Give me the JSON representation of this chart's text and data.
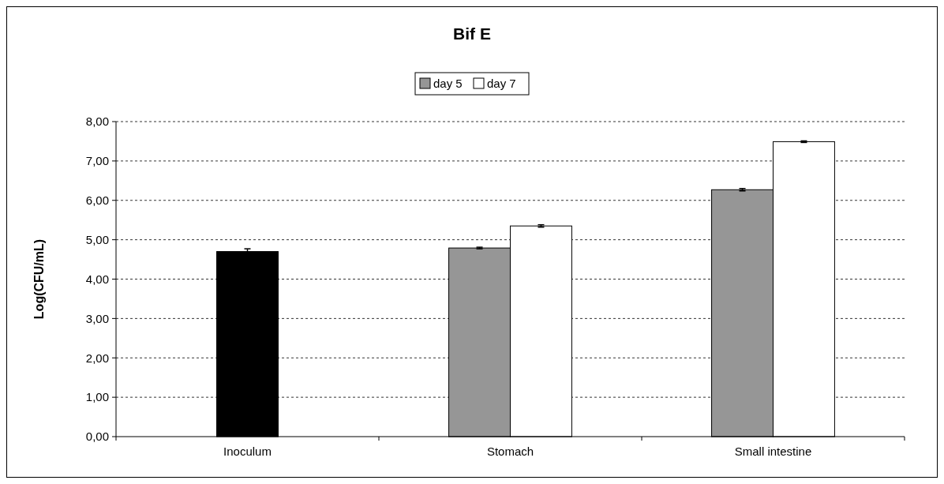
{
  "chart_data": {
    "type": "bar",
    "title": "Bif E",
    "ylabel": "Log(CFU/mL)",
    "categories": [
      "Inoculum",
      "Stomach",
      "Small intestine"
    ],
    "series": [
      {
        "color": "#000000",
        "values": [
          4.7,
          null,
          null
        ],
        "errors": [
          0.07,
          null,
          null
        ]
      },
      {
        "name": "day 5",
        "color": "#969696",
        "values": [
          null,
          4.79,
          6.27
        ],
        "errors": [
          null,
          0.02,
          0.03
        ]
      },
      {
        "name": "day 7",
        "color": "#ffffff",
        "values": [
          null,
          5.35,
          7.49
        ],
        "errors": [
          null,
          0.03,
          0.02
        ]
      }
    ],
    "ylim": [
      0,
      8
    ],
    "yticks": [
      {
        "value": 0,
        "label": "0,00"
      },
      {
        "value": 1,
        "label": "1,00"
      },
      {
        "value": 2,
        "label": "2,00"
      },
      {
        "value": 3,
        "label": "3,00"
      },
      {
        "value": 4,
        "label": "4,00"
      },
      {
        "value": 5,
        "label": "5,00"
      },
      {
        "value": 6,
        "label": "6,00"
      },
      {
        "value": 7,
        "label": "7,00"
      },
      {
        "value": 8,
        "label": "8,00"
      }
    ],
    "grid": "y",
    "legend": "top"
  }
}
